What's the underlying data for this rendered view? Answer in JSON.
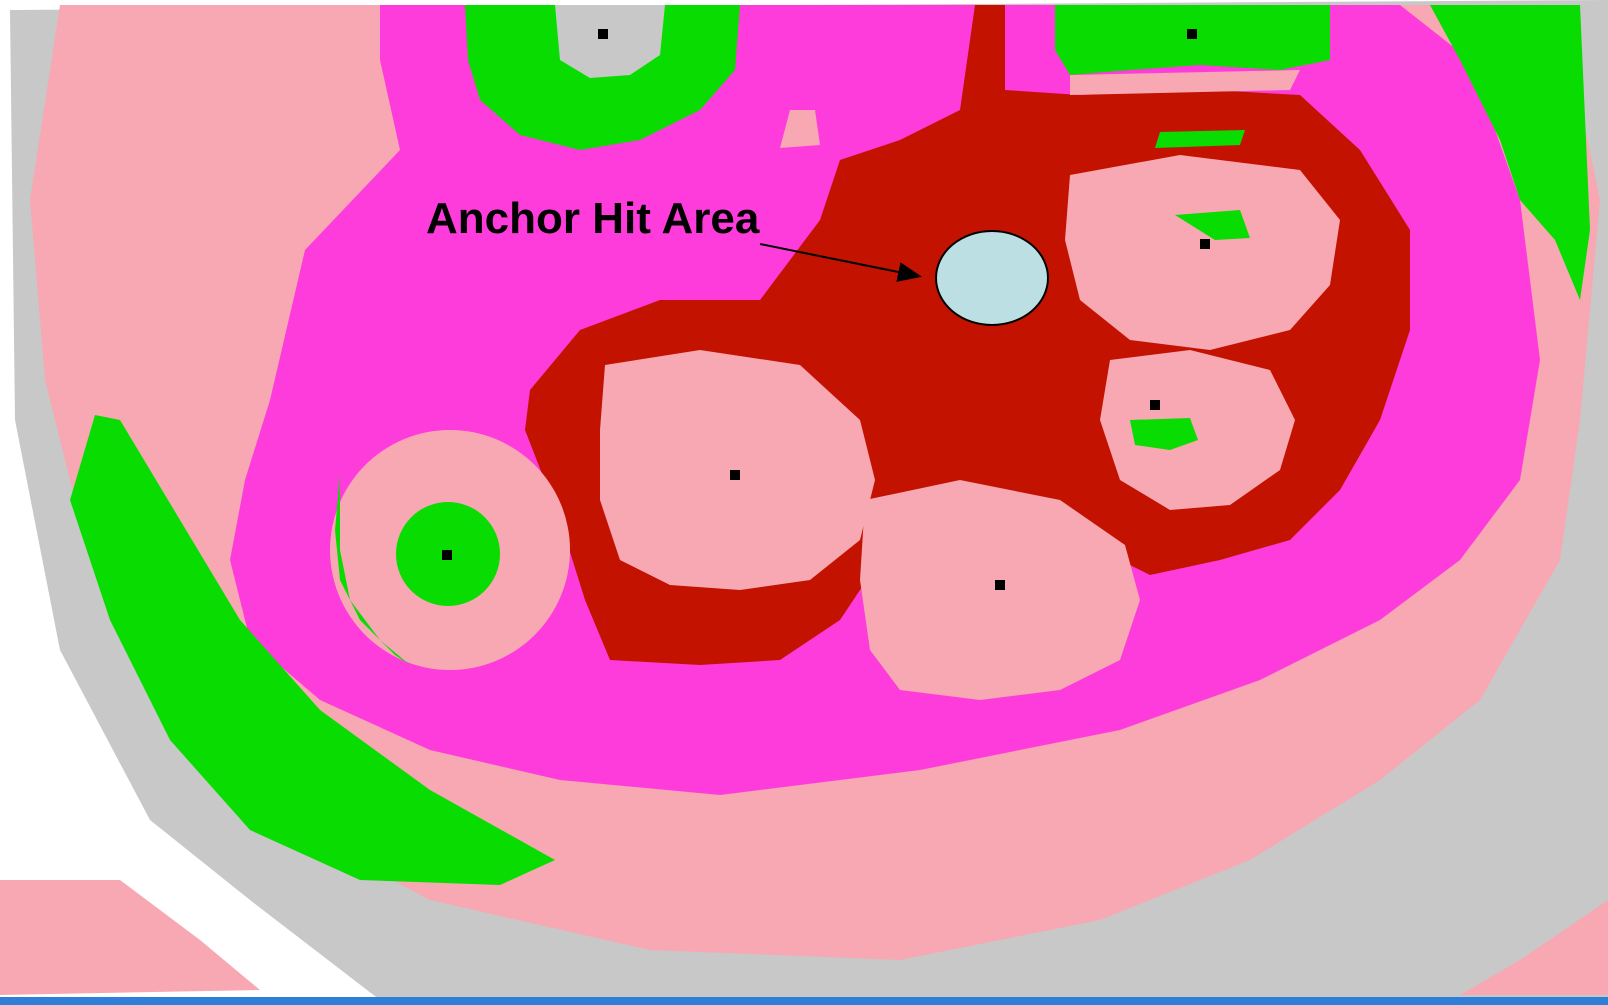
{
  "annotation": {
    "label": "Anchor Hit Area"
  },
  "colors": {
    "background": "#ffffff",
    "outer_ring": "#f7a8b2",
    "outer_gray": "#c8c8c8",
    "pink_region": "#fe3cdc",
    "dark_red_region": "#c41200",
    "green_region": "#08dc00",
    "anchor_fill": "#bcdfe3",
    "site_marker": "#000000",
    "bottom_bar": "#2f7fd8"
  }
}
